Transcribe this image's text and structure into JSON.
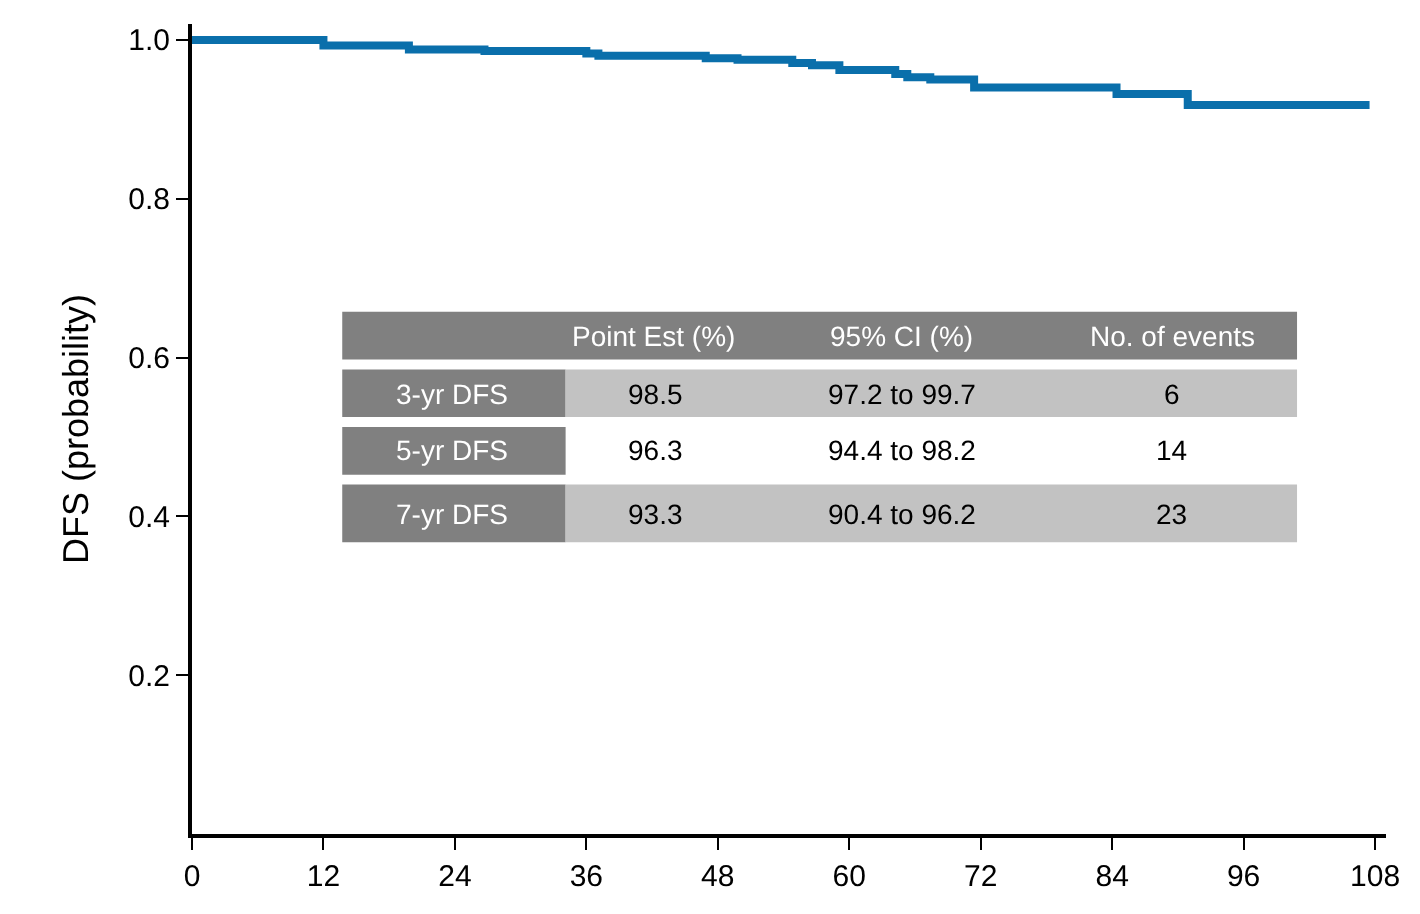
{
  "chart_data": {
    "type": "step",
    "ylabel": "DFS (probability)",
    "x": [
      0,
      12,
      19.8,
      26.7,
      36,
      37.1,
      46.9,
      49.8,
      54.8,
      56.6,
      59.1,
      64.2,
      65.3,
      67.4,
      71.4,
      84.4,
      90.9,
      107.5
    ],
    "series": [
      {
        "color": "#0a6fab",
        "values": [
          1.0,
          0.993,
          0.988,
          0.986,
          0.983,
          0.98,
          0.977,
          0.975,
          0.971,
          0.968,
          0.962,
          0.957,
          0.953,
          0.95,
          0.94,
          0.932,
          0.918,
          0.918
        ]
      }
    ],
    "xlim": [
      0,
      109
    ],
    "xticks": [
      0,
      12,
      24,
      36,
      48,
      60,
      72,
      84,
      96,
      108
    ],
    "ylim": [
      0,
      1.02
    ],
    "yticks": [
      0.2,
      0.4,
      0.6,
      {
        "value": 1.0,
        "label": "1.0"
      },
      0.8
    ],
    "grid": false,
    "annotations": [
      "Point Est (%)",
      "95% CI (%)",
      "No. of events",
      "3-yr DFS",
      "98.5",
      "97.2 to 99.7",
      "6",
      "5-yr DFS",
      "96.3",
      "94.4 to 98.2",
      "14",
      "7-yr DFS",
      "93.3",
      "90.4 to 96.2",
      "23"
    ]
  }
}
